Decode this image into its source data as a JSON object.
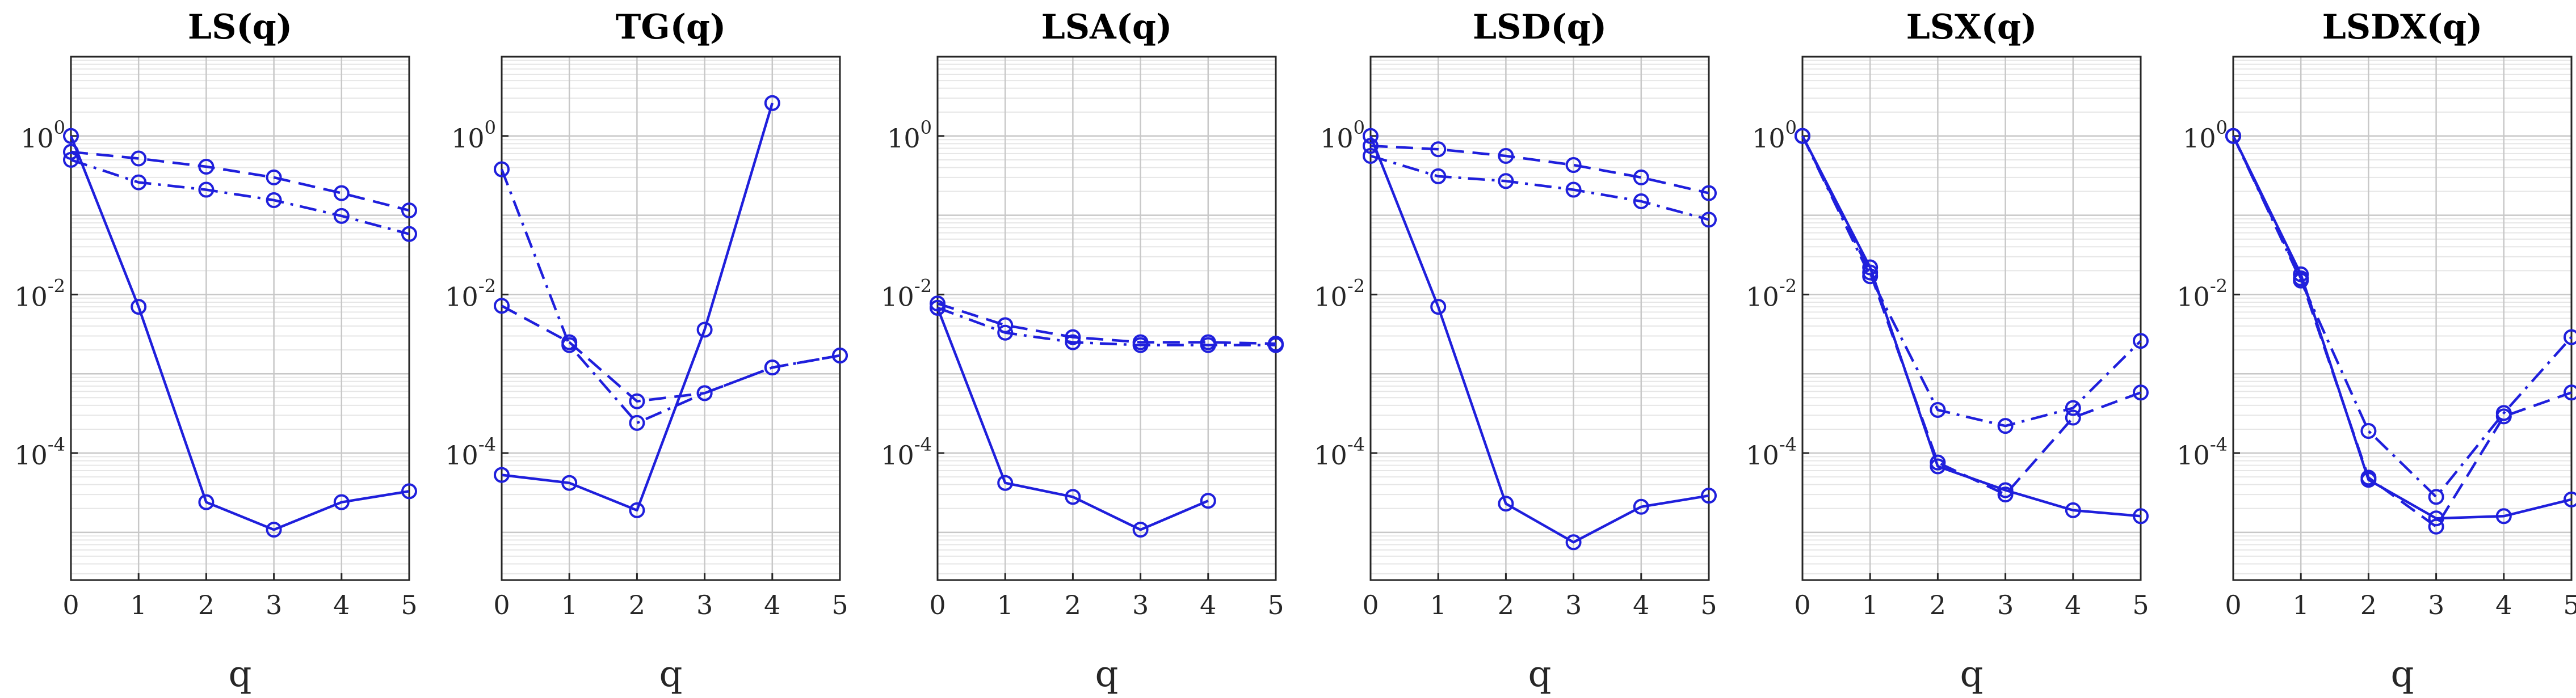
{
  "chart_data": [
    {
      "type": "line",
      "title": "LS(q)",
      "xlabel": "q",
      "ylabel": "",
      "yscale": "log",
      "x": [
        0,
        1,
        2,
        3,
        4,
        5
      ],
      "ylim": [
        2.5e-06,
        10
      ],
      "series": [
        {
          "name": "solid",
          "style": "solid",
          "values": [
            1.0,
            0.007,
            2.4e-05,
            1.08e-05,
            2.4e-05,
            3.3e-05
          ]
        },
        {
          "name": "dashed",
          "style": "dashed",
          "values": [
            0.63,
            0.52,
            0.41,
            0.3,
            0.19,
            0.115
          ]
        },
        {
          "name": "dashdot",
          "style": "dashdot",
          "values": [
            0.5,
            0.26,
            0.21,
            0.155,
            0.098,
            0.058
          ]
        }
      ]
    },
    {
      "type": "line",
      "title": "TG(q)",
      "xlabel": "q",
      "ylabel": "",
      "yscale": "log",
      "x": [
        0,
        1,
        2,
        3,
        4,
        5
      ],
      "ylim": [
        2.5e-06,
        10
      ],
      "series": [
        {
          "name": "solid",
          "style": "solid",
          "values": [
            5.3e-05,
            4.2e-05,
            1.9e-05,
            0.0036,
            2.6,
            null
          ]
        },
        {
          "name": "dashed",
          "style": "dashed",
          "values": [
            0.0072,
            0.0025,
            0.00045,
            0.00057,
            0.0012,
            0.0017
          ]
        },
        {
          "name": "dashdot",
          "style": "dashdot",
          "values": [
            0.38,
            0.0023,
            0.00024,
            0.00057,
            0.0012,
            0.0017
          ]
        }
      ]
    },
    {
      "type": "line",
      "title": "LSA(q)",
      "xlabel": "q",
      "ylabel": "",
      "yscale": "log",
      "x": [
        0,
        1,
        2,
        3,
        4,
        5
      ],
      "ylim": [
        2.5e-06,
        10
      ],
      "series": [
        {
          "name": "solid",
          "style": "solid",
          "values": [
            0.0068,
            4.2e-05,
            2.8e-05,
            1.08e-05,
            2.5e-05,
            null
          ]
        },
        {
          "name": "dashed",
          "style": "dashed",
          "values": [
            0.0077,
            0.0041,
            0.0029,
            0.0025,
            0.0025,
            0.0024
          ]
        },
        {
          "name": "dashdot",
          "style": "dashdot",
          "values": [
            0.0068,
            0.0033,
            0.0025,
            0.0023,
            0.0023,
            0.0023
          ]
        }
      ]
    },
    {
      "type": "line",
      "title": "LSD(q)",
      "xlabel": "q",
      "ylabel": "",
      "yscale": "log",
      "x": [
        0,
        1,
        2,
        3,
        4,
        5
      ],
      "ylim": [
        2.5e-06,
        10
      ],
      "series": [
        {
          "name": "solid",
          "style": "solid",
          "values": [
            1.0,
            0.007,
            2.3e-05,
            7.5e-06,
            2.1e-05,
            2.9e-05
          ]
        },
        {
          "name": "dashed",
          "style": "dashed",
          "values": [
            0.75,
            0.68,
            0.56,
            0.43,
            0.3,
            0.19
          ]
        },
        {
          "name": "dashdot",
          "style": "dashdot",
          "values": [
            0.56,
            0.31,
            0.27,
            0.21,
            0.15,
            0.088
          ]
        }
      ]
    },
    {
      "type": "line",
      "title": "LSX(q)",
      "xlabel": "q",
      "ylabel": "",
      "yscale": "log",
      "x": [
        0,
        1,
        2,
        3,
        4,
        5
      ],
      "ylim": [
        2.5e-06,
        10
      ],
      "series": [
        {
          "name": "solid",
          "style": "solid",
          "values": [
            1.0,
            0.022,
            6.8e-05,
            3.4e-05,
            1.9e-05,
            1.6e-05
          ]
        },
        {
          "name": "dashed",
          "style": "dashed",
          "values": [
            1.0,
            0.019,
            7.6e-05,
            3e-05,
            0.00028,
            0.00058
          ]
        },
        {
          "name": "dashdot",
          "style": "dashdot",
          "values": [
            1.0,
            0.017,
            0.00035,
            0.00022,
            0.00037,
            0.0026
          ]
        }
      ]
    },
    {
      "type": "line",
      "title": "LSDX(q)",
      "xlabel": "q",
      "ylabel": "",
      "yscale": "log",
      "x": [
        0,
        1,
        2,
        3,
        4,
        5
      ],
      "ylim": [
        2.5e-06,
        10
      ],
      "series": [
        {
          "name": "solid",
          "style": "solid",
          "values": [
            1.0,
            0.018,
            4.6e-05,
            1.5e-05,
            1.6e-05,
            2.6e-05
          ]
        },
        {
          "name": "dashed",
          "style": "dashed",
          "values": [
            1.0,
            0.016,
            4.9e-05,
            1.18e-05,
            0.00029,
            0.00058
          ]
        },
        {
          "name": "dashdot",
          "style": "dashdot",
          "values": [
            1.0,
            0.015,
            0.00019,
            2.8e-05,
            0.00032,
            0.0029
          ]
        }
      ]
    }
  ],
  "axis_ticks": {
    "x": [
      "0",
      "1",
      "2",
      "3",
      "4",
      "5"
    ],
    "y": [
      {
        "base": "10",
        "exp": "0",
        "value": 1
      },
      {
        "base": "10",
        "exp": "-2",
        "value": 0.01
      },
      {
        "base": "10",
        "exp": "-4",
        "value": 0.0001
      }
    ]
  },
  "colors": {
    "line": "#1f1fdc",
    "grid_major": "#c8c8c8",
    "grid_minor": "#e6e6e6",
    "axis": "#262626"
  }
}
